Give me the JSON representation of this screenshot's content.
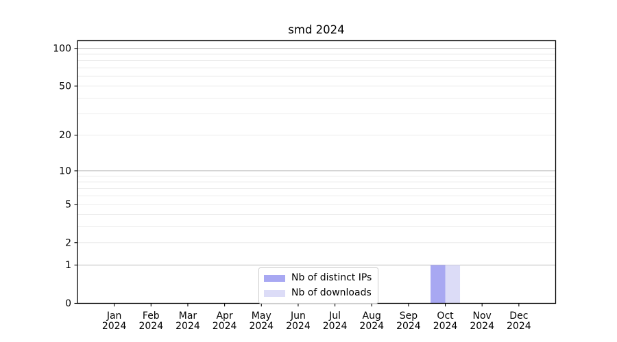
{
  "figure": {
    "title": "smd 2024"
  },
  "chart_data": {
    "type": "bar",
    "title": "smd 2024",
    "categories": [
      "Jan 2024",
      "Feb 2024",
      "Mar 2024",
      "Apr 2024",
      "May 2024",
      "Jun 2024",
      "Jul 2024",
      "Aug 2024",
      "Sep 2024",
      "Oct 2024",
      "Nov 2024",
      "Dec 2024"
    ],
    "series": [
      {
        "name": "Nb of distinct IPs",
        "color": "#a8a8f2",
        "values": [
          0,
          0,
          0,
          0,
          0,
          0,
          0,
          0,
          0,
          1,
          0,
          0
        ]
      },
      {
        "name": "Nb of downloads",
        "color": "#dcdcf7",
        "values": [
          0,
          0,
          0,
          0,
          0,
          0,
          0,
          0,
          0,
          1,
          0,
          0
        ]
      }
    ],
    "xlabel": "",
    "ylabel": "",
    "yscale": "log1p",
    "ylim": [
      0,
      115
    ],
    "yticks": [
      0,
      1,
      2,
      5,
      10,
      20,
      50,
      100
    ],
    "major_gridlines": [
      1,
      10,
      100
    ],
    "minor_gridlines": [
      2,
      3,
      4,
      5,
      6,
      7,
      8,
      9,
      20,
      30,
      40,
      50,
      60,
      70,
      80,
      90
    ],
    "grid": true,
    "legend_position": "lower center",
    "colors": {
      "major_grid": "#b5b5b5",
      "minor_grid": "#ececec",
      "axis": "#000000",
      "text": "#000000",
      "background": "#ffffff"
    }
  }
}
